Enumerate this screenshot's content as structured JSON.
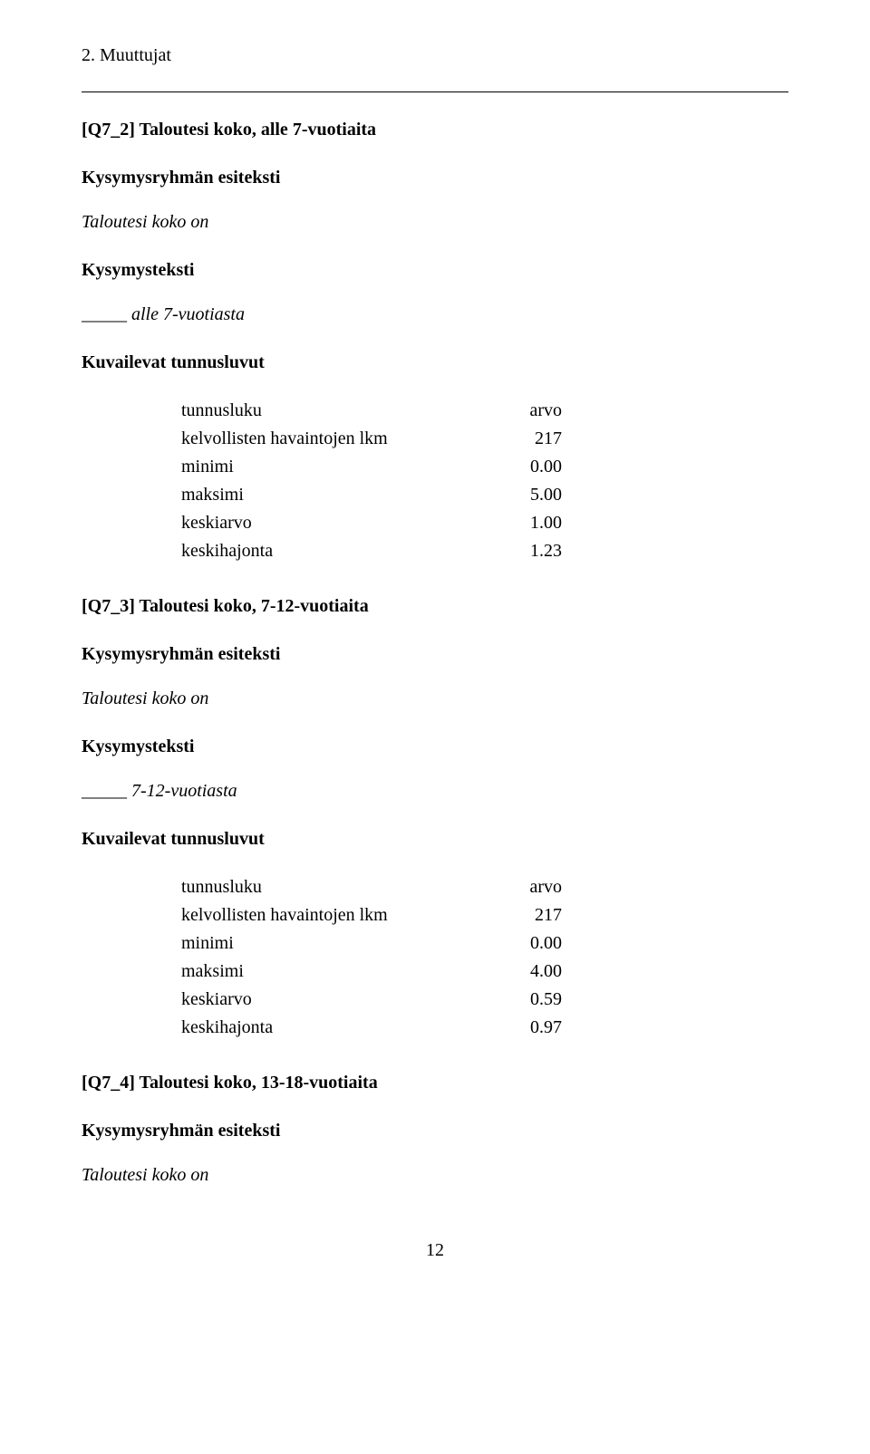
{
  "header": {
    "section_title": "2. Muuttujat"
  },
  "q7_2": {
    "heading": "[Q7_2] Taloutesi koko, alle 7-vuotiaita",
    "group_label": "Kysymysryhmän esiteksti",
    "group_text": "Taloutesi koko on",
    "question_label": "Kysymysteksti",
    "question_text": "_____ alle 7-vuotiasta",
    "stats_label": "Kuvailevat tunnusluvut",
    "head_label": "tunnusluku",
    "head_val": "arvo",
    "rows": {
      "r0": {
        "label": "kelvollisten havaintojen lkm",
        "val": "217"
      },
      "r1": {
        "label": "minimi",
        "val": "0.00"
      },
      "r2": {
        "label": "maksimi",
        "val": "5.00"
      },
      "r3": {
        "label": "keskiarvo",
        "val": "1.00"
      },
      "r4": {
        "label": "keskihajonta",
        "val": "1.23"
      }
    }
  },
  "q7_3": {
    "heading": "[Q7_3] Taloutesi koko, 7-12-vuotiaita",
    "group_label": "Kysymysryhmän esiteksti",
    "group_text": "Taloutesi koko on",
    "question_label": "Kysymysteksti",
    "question_text": "_____ 7-12-vuotiasta",
    "stats_label": "Kuvailevat tunnusluvut",
    "head_label": "tunnusluku",
    "head_val": "arvo",
    "rows": {
      "r0": {
        "label": "kelvollisten havaintojen lkm",
        "val": "217"
      },
      "r1": {
        "label": "minimi",
        "val": "0.00"
      },
      "r2": {
        "label": "maksimi",
        "val": "4.00"
      },
      "r3": {
        "label": "keskiarvo",
        "val": "0.59"
      },
      "r4": {
        "label": "keskihajonta",
        "val": "0.97"
      }
    }
  },
  "q7_4": {
    "heading": "[Q7_4] Taloutesi koko, 13-18-vuotiaita",
    "group_label": "Kysymysryhmän esiteksti",
    "group_text": "Taloutesi koko on"
  },
  "page_number": "12"
}
